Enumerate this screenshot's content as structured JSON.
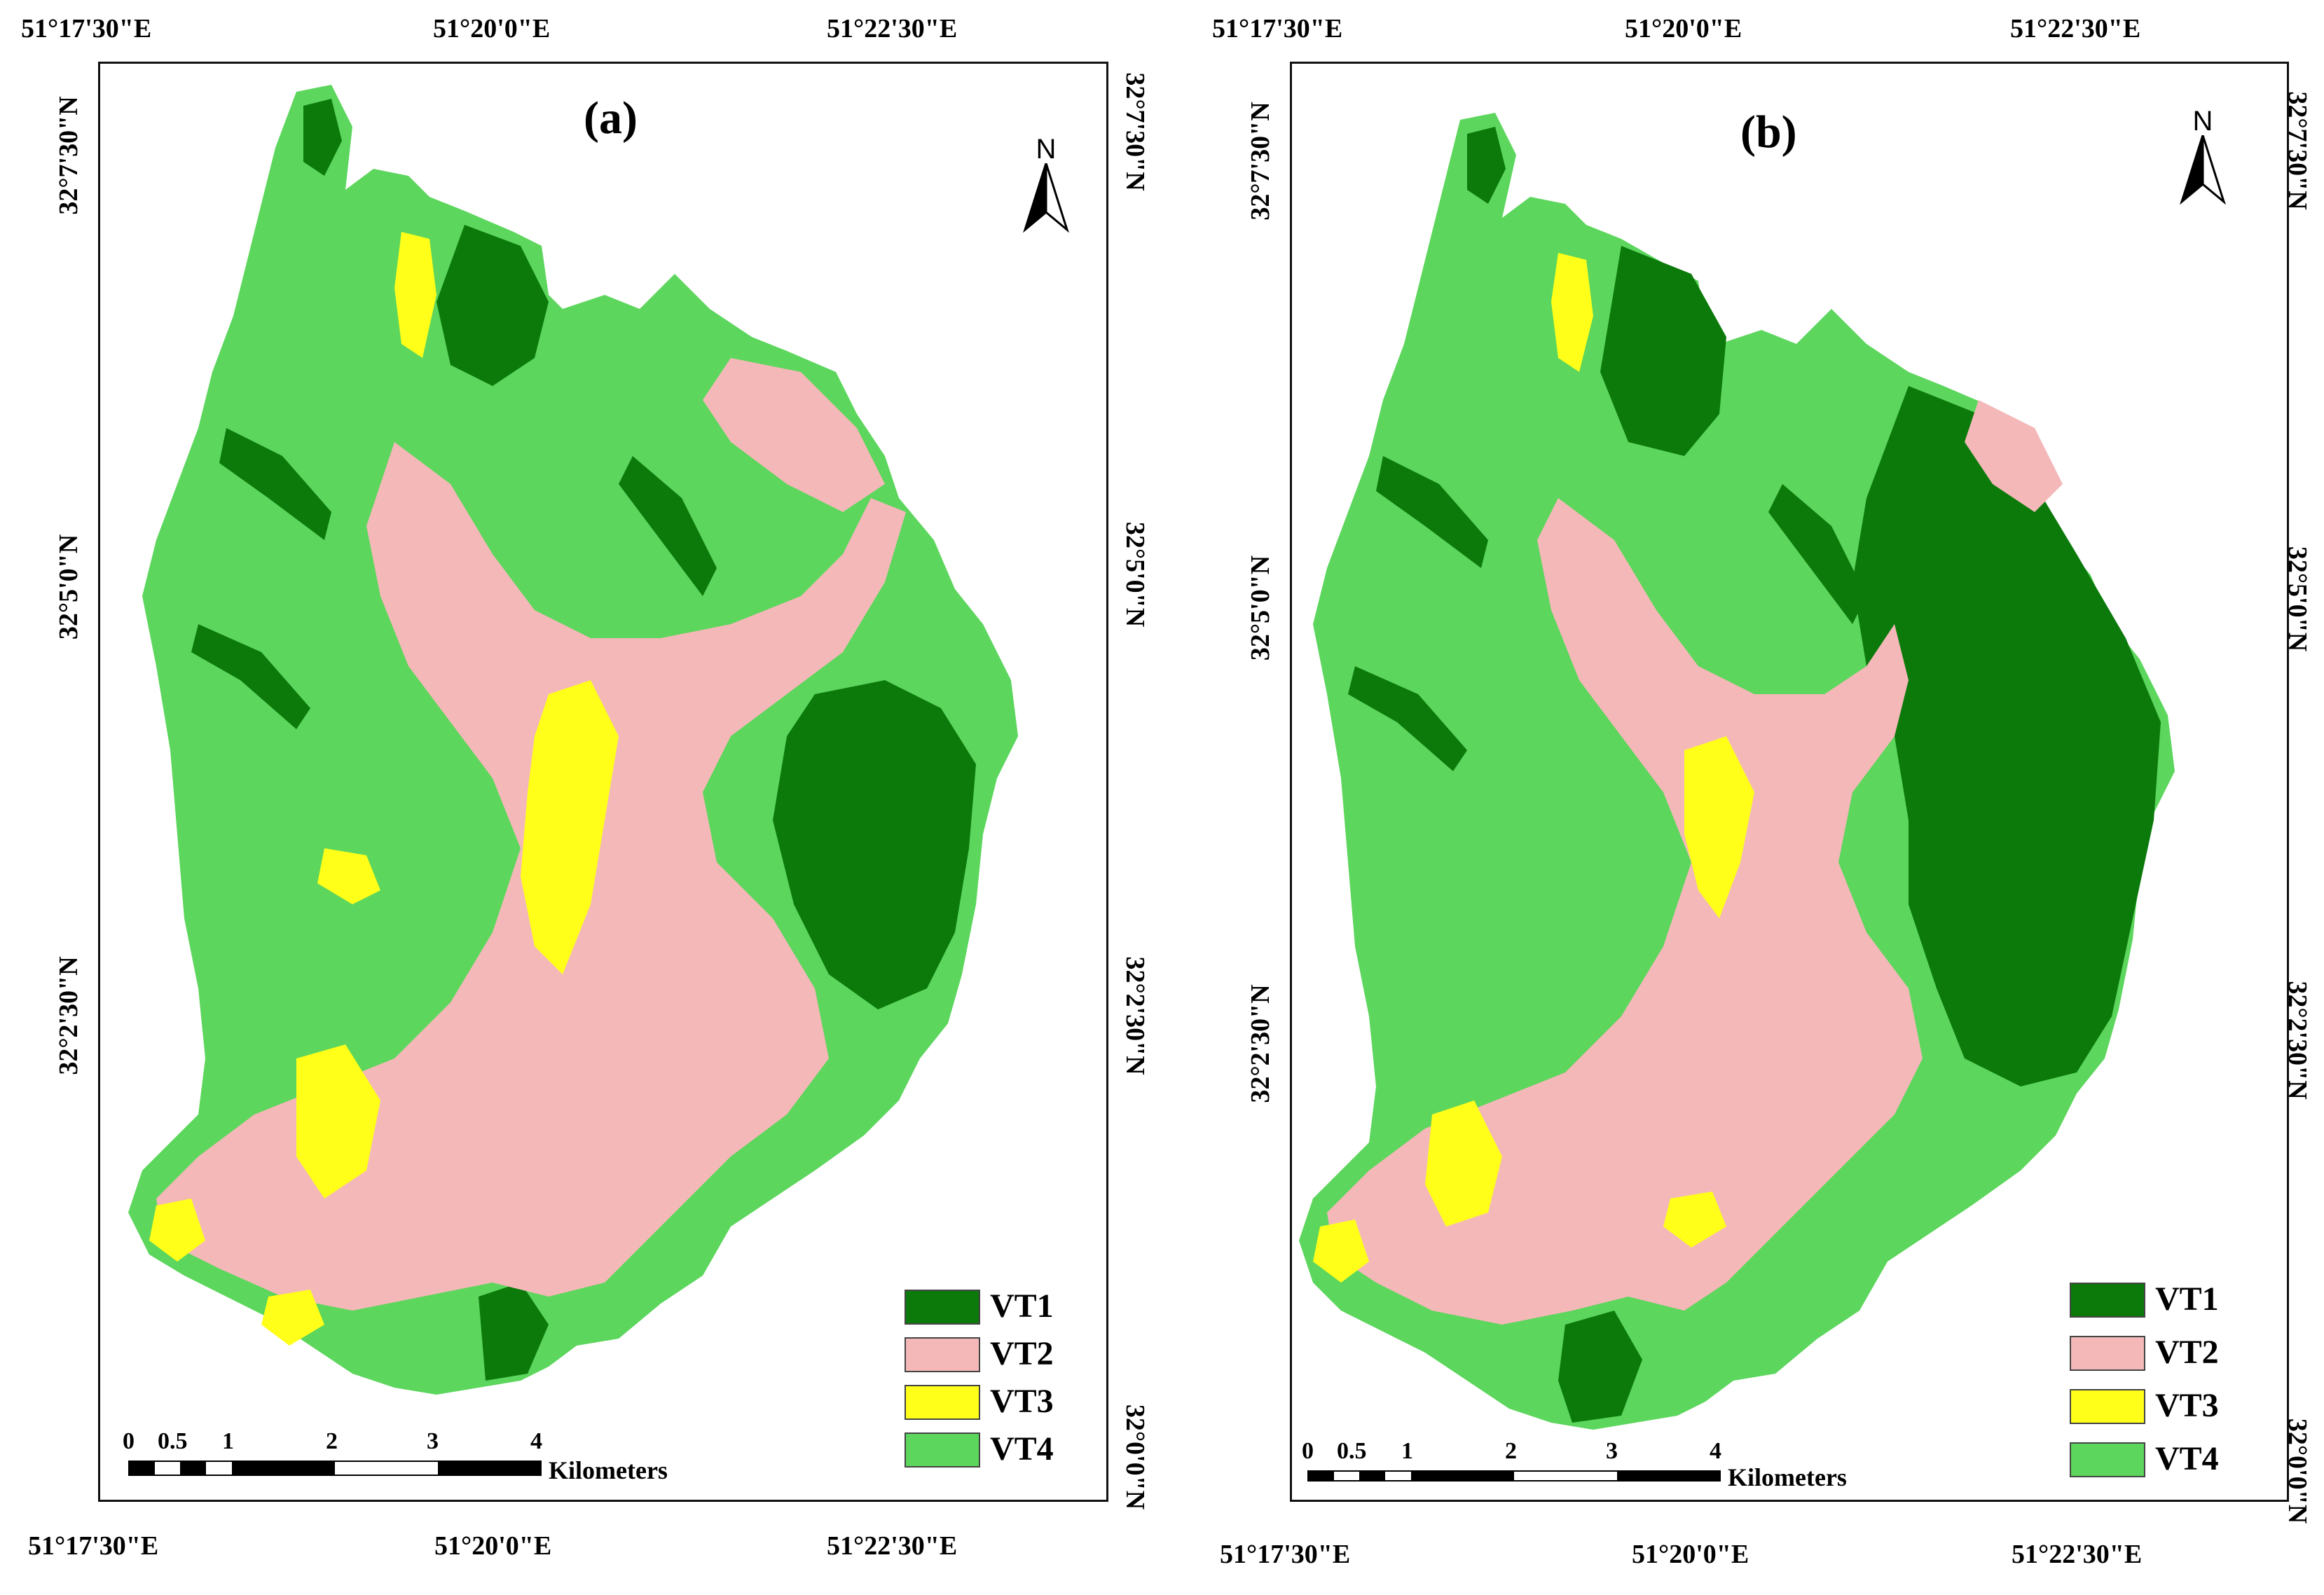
{
  "colors": {
    "vt1": "#0b7a0b",
    "vt2": "#f4b8b8",
    "vt3": "#ffff1a",
    "vt4": "#5cd65c",
    "frame": "#111111"
  },
  "north_letter": "N",
  "legend": [
    {
      "label": "VT1",
      "color": "#0b7a0b"
    },
    {
      "label": "VT2",
      "color": "#f4b8b8"
    },
    {
      "label": "VT3",
      "color": "#ffff1a"
    },
    {
      "label": "VT4",
      "color": "#5cd65c"
    }
  ],
  "scalebar": {
    "ticks": [
      "0",
      "0.5",
      "1",
      "2",
      "3",
      "4"
    ],
    "units": "Kilometers"
  },
  "panels": [
    {
      "label": "(a)",
      "top_ticks": [
        "51°17'30\"E",
        "51°20'0\"E",
        "51°22'30\"E"
      ],
      "bottom_ticks": [
        "51°17'30\"E",
        "51°20'0\"E",
        "51°22'30\"E"
      ],
      "left_ticks": [
        "32°7'30\"N",
        "32°5'0\"N",
        "32°2'30\"N"
      ],
      "right_ticks": [
        "32°7'30\"N",
        "32°5'0\"N",
        "32°2'30\"N",
        "32°0'0\"N"
      ]
    },
    {
      "label": "(b)",
      "top_ticks": [
        "51°17'30\"E",
        "51°20'0\"E",
        "51°22'30\"E"
      ],
      "bottom_ticks": [
        "51°17'30\"E",
        "51°20'0\"E",
        "51°22'30\"E"
      ],
      "left_ticks": [
        "32°7'30\"N",
        "32°5'0\"N",
        "32°2'30\"N"
      ],
      "right_ticks": [
        "32°7'30\"N",
        "32°5'0\"N",
        "32°2'30\"N",
        "32°0'0\"N"
      ]
    }
  ]
}
